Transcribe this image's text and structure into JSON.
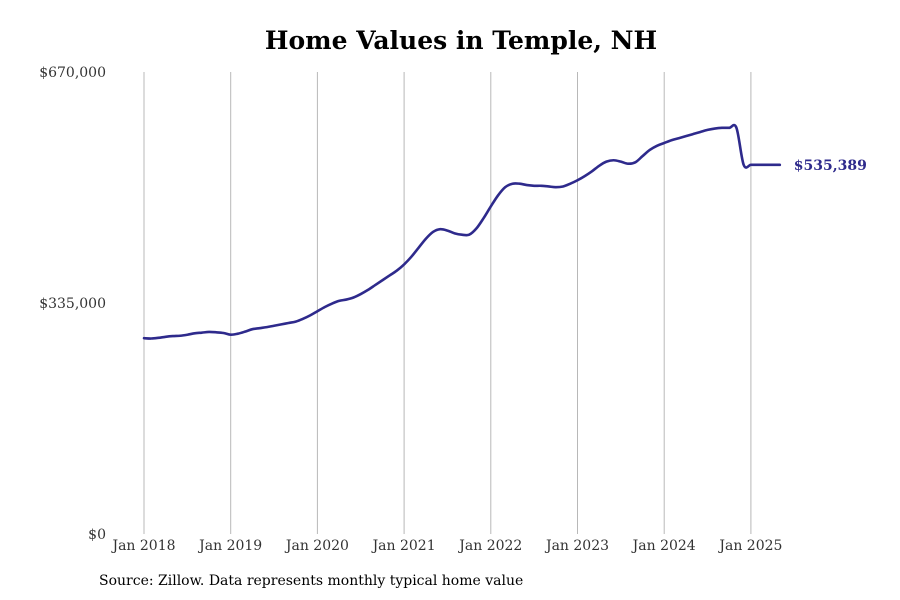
{
  "chart_data": {
    "type": "line",
    "title": "Home Values in Temple, NH",
    "xlabel": "",
    "ylabel": "",
    "ylim": [
      0,
      670000
    ],
    "y_ticks": [
      {
        "value": 0,
        "label": "$0"
      },
      {
        "value": 335000,
        "label": "$335,000"
      },
      {
        "value": 670000,
        "label": "$670,000"
      }
    ],
    "x_range": [
      "2018-01",
      "2025-05"
    ],
    "x_ticks": [
      {
        "date": "2018-01",
        "label": "Jan 2018"
      },
      {
        "date": "2019-01",
        "label": "Jan 2019"
      },
      {
        "date": "2020-01",
        "label": "Jan 2020"
      },
      {
        "date": "2021-01",
        "label": "Jan 2021"
      },
      {
        "date": "2022-01",
        "label": "Jan 2022"
      },
      {
        "date": "2023-01",
        "label": "Jan 2023"
      },
      {
        "date": "2024-01",
        "label": "Jan 2024"
      },
      {
        "date": "2025-01",
        "label": "Jan 2025"
      }
    ],
    "grid": {
      "vertical": true,
      "horizontal": false
    },
    "line_color": "#2e2a8c",
    "series": [
      {
        "name": "",
        "x": [
          "2018-01",
          "2018-02",
          "2018-03",
          "2018-04",
          "2018-05",
          "2018-06",
          "2018-07",
          "2018-08",
          "2018-09",
          "2018-10",
          "2018-11",
          "2018-12",
          "2019-01",
          "2019-02",
          "2019-03",
          "2019-04",
          "2019-05",
          "2019-06",
          "2019-07",
          "2019-08",
          "2019-09",
          "2019-10",
          "2019-11",
          "2019-12",
          "2020-01",
          "2020-02",
          "2020-03",
          "2020-04",
          "2020-05",
          "2020-06",
          "2020-07",
          "2020-08",
          "2020-09",
          "2020-10",
          "2020-11",
          "2020-12",
          "2021-01",
          "2021-02",
          "2021-03",
          "2021-04",
          "2021-05",
          "2021-06",
          "2021-07",
          "2021-08",
          "2021-09",
          "2021-10",
          "2021-11",
          "2021-12",
          "2022-01",
          "2022-02",
          "2022-03",
          "2022-04",
          "2022-05",
          "2022-06",
          "2022-07",
          "2022-08",
          "2022-09",
          "2022-10",
          "2022-11",
          "2022-12",
          "2023-01",
          "2023-02",
          "2023-03",
          "2023-04",
          "2023-05",
          "2023-06",
          "2023-07",
          "2023-08",
          "2023-09",
          "2023-10",
          "2023-11",
          "2023-12",
          "2024-01",
          "2024-02",
          "2024-03",
          "2024-04",
          "2024-05",
          "2024-06",
          "2024-07",
          "2024-08",
          "2024-09",
          "2024-10",
          "2024-11",
          "2024-12",
          "2025-01",
          "2025-02",
          "2025-03",
          "2025-04",
          "2025-05"
        ],
        "values": [
          284000,
          283500,
          284500,
          286000,
          287000,
          287500,
          289000,
          291000,
          292000,
          293000,
          292500,
          291500,
          289000,
          290500,
          293500,
          297000,
          298500,
          300000,
          302000,
          304000,
          306000,
          308000,
          312000,
          317000,
          323000,
          329000,
          334000,
          338000,
          340000,
          343000,
          348000,
          354000,
          361000,
          368000,
          375000,
          382000,
          391000,
          402000,
          415000,
          428000,
          438000,
          442000,
          440000,
          436000,
          434000,
          434000,
          443000,
          458000,
          475000,
          491000,
          503000,
          508000,
          508000,
          506000,
          505000,
          505000,
          504000,
          503000,
          504000,
          508000,
          513000,
          519000,
          526000,
          534000,
          540000,
          542000,
          540000,
          537000,
          539000,
          548000,
          557000,
          563000,
          567000,
          571000,
          574000,
          577000,
          580000,
          583000,
          586000,
          588000,
          589000,
          589000,
          589000,
          535389,
          535389,
          535389,
          535389,
          535389,
          535389
        ]
      }
    ],
    "end_label": "$535,389",
    "end_label_color": "#2e2a8c"
  },
  "source_note": "Source: Zillow. Data represents monthly typical home value"
}
